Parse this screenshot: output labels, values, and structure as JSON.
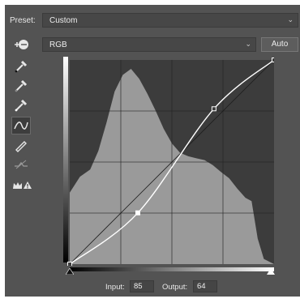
{
  "preset": {
    "label": "Preset:",
    "value": "Custom"
  },
  "channel": {
    "value": "RGB",
    "auto_label": "Auto"
  },
  "io": {
    "input_label": "Input:",
    "input_value": "85",
    "output_label": "Output:",
    "output_value": "64"
  },
  "tools": [
    "target-adjust",
    "eyedropper-black",
    "eyedropper-gray",
    "eyedropper-white",
    "curve-points",
    "pencil",
    "smooth",
    "clipping-warning"
  ],
  "colors": {
    "panel": "#535353",
    "graph_bg": "#3c3c3c",
    "histogram": "#9a9a9a",
    "curve": "#ffffff"
  },
  "curve_points": [
    {
      "input": 0,
      "output": 0
    },
    {
      "input": 85,
      "output": 64
    },
    {
      "input": 180,
      "output": 194
    },
    {
      "input": 255,
      "output": 255
    }
  ]
}
